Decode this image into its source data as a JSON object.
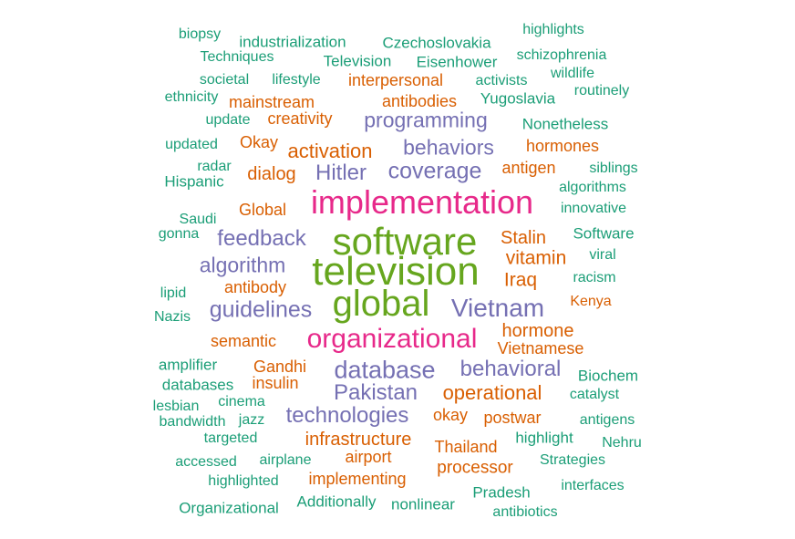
{
  "colors": {
    "teal": "#1b9e77",
    "orange": "#d95f02",
    "purple": "#7570b3",
    "pink": "#e7298a",
    "green": "#66a61e"
  },
  "words": [
    {
      "text": "software",
      "color": "green"
    },
    {
      "text": "television",
      "color": "green"
    },
    {
      "text": "global",
      "color": "green"
    },
    {
      "text": "implementation",
      "color": "pink"
    },
    {
      "text": "organizational",
      "color": "pink"
    },
    {
      "text": "Vietnam",
      "color": "purple"
    },
    {
      "text": "database",
      "color": "purple"
    },
    {
      "text": "Pakistan",
      "color": "purple"
    },
    {
      "text": "technologies",
      "color": "purple"
    },
    {
      "text": "guidelines",
      "color": "purple"
    },
    {
      "text": "Hitler",
      "color": "purple"
    },
    {
      "text": "coverage",
      "color": "purple"
    },
    {
      "text": "behavioral",
      "color": "purple"
    },
    {
      "text": "feedback",
      "color": "purple"
    },
    {
      "text": "algorithm",
      "color": "purple"
    },
    {
      "text": "behaviors",
      "color": "purple"
    },
    {
      "text": "programming",
      "color": "purple"
    },
    {
      "text": "activation",
      "color": "orange"
    },
    {
      "text": "operational",
      "color": "orange"
    },
    {
      "text": "infrastructure",
      "color": "orange"
    },
    {
      "text": "vitamin",
      "color": "orange"
    },
    {
      "text": "hormone",
      "color": "orange"
    },
    {
      "text": "Stalin",
      "color": "orange"
    },
    {
      "text": "Iraq",
      "color": "orange"
    },
    {
      "text": "dialog",
      "color": "orange"
    },
    {
      "text": "antigen",
      "color": "orange"
    },
    {
      "text": "Global",
      "color": "orange"
    },
    {
      "text": "antibody",
      "color": "orange"
    },
    {
      "text": "semantic",
      "color": "orange"
    },
    {
      "text": "Gandhi",
      "color": "orange"
    },
    {
      "text": "insulin",
      "color": "orange"
    },
    {
      "text": "okay",
      "color": "orange"
    },
    {
      "text": "postwar",
      "color": "orange"
    },
    {
      "text": "Thailand",
      "color": "orange"
    },
    {
      "text": "processor",
      "color": "orange"
    },
    {
      "text": "airport",
      "color": "orange"
    },
    {
      "text": "implementing",
      "color": "orange"
    },
    {
      "text": "Okay",
      "color": "orange"
    },
    {
      "text": "hormones",
      "color": "orange"
    },
    {
      "text": "mainstream",
      "color": "orange"
    },
    {
      "text": "antibodies",
      "color": "orange"
    },
    {
      "text": "creativity",
      "color": "orange"
    },
    {
      "text": "interpersonal",
      "color": "orange"
    },
    {
      "text": "Vietnamese",
      "color": "orange"
    },
    {
      "text": "Kenya",
      "color": "orange"
    },
    {
      "text": "biopsy",
      "color": "teal"
    },
    {
      "text": "industrialization",
      "color": "teal"
    },
    {
      "text": "Czechoslovakia",
      "color": "teal"
    },
    {
      "text": "highlights",
      "color": "teal"
    },
    {
      "text": "Techniques",
      "color": "teal"
    },
    {
      "text": "Television",
      "color": "teal"
    },
    {
      "text": "Eisenhower",
      "color": "teal"
    },
    {
      "text": "schizophrenia",
      "color": "teal"
    },
    {
      "text": "wildlife",
      "color": "teal"
    },
    {
      "text": "societal",
      "color": "teal"
    },
    {
      "text": "lifestyle",
      "color": "teal"
    },
    {
      "text": "activists",
      "color": "teal"
    },
    {
      "text": "routinely",
      "color": "teal"
    },
    {
      "text": "ethnicity",
      "color": "teal"
    },
    {
      "text": "Yugoslavia",
      "color": "teal"
    },
    {
      "text": "update",
      "color": "teal"
    },
    {
      "text": "Nonetheless",
      "color": "teal"
    },
    {
      "text": "updated",
      "color": "teal"
    },
    {
      "text": "radar",
      "color": "teal"
    },
    {
      "text": "siblings",
      "color": "teal"
    },
    {
      "text": "Hispanic",
      "color": "teal"
    },
    {
      "text": "algorithms",
      "color": "teal"
    },
    {
      "text": "innovative",
      "color": "teal"
    },
    {
      "text": "Saudi",
      "color": "teal"
    },
    {
      "text": "gonna",
      "color": "teal"
    },
    {
      "text": "Software",
      "color": "teal"
    },
    {
      "text": "viral",
      "color": "teal"
    },
    {
      "text": "racism",
      "color": "teal"
    },
    {
      "text": "lipid",
      "color": "teal"
    },
    {
      "text": "Nazis",
      "color": "teal"
    },
    {
      "text": "amplifier",
      "color": "teal"
    },
    {
      "text": "databases",
      "color": "teal"
    },
    {
      "text": "Biochem",
      "color": "teal"
    },
    {
      "text": "catalyst",
      "color": "teal"
    },
    {
      "text": "lesbian",
      "color": "teal"
    },
    {
      "text": "cinema",
      "color": "teal"
    },
    {
      "text": "bandwidth",
      "color": "teal"
    },
    {
      "text": "jazz",
      "color": "teal"
    },
    {
      "text": "antigens",
      "color": "teal"
    },
    {
      "text": "targeted",
      "color": "teal"
    },
    {
      "text": "highlight",
      "color": "teal"
    },
    {
      "text": "Nehru",
      "color": "teal"
    },
    {
      "text": "accessed",
      "color": "teal"
    },
    {
      "text": "airplane",
      "color": "teal"
    },
    {
      "text": "Strategies",
      "color": "teal"
    },
    {
      "text": "highlighted",
      "color": "teal"
    },
    {
      "text": "Pradesh",
      "color": "teal"
    },
    {
      "text": "interfaces",
      "color": "teal"
    },
    {
      "text": "Organizational",
      "color": "teal"
    },
    {
      "text": "Additionally",
      "color": "teal"
    },
    {
      "text": "nonlinear",
      "color": "teal"
    },
    {
      "text": "antibiotics",
      "color": "teal"
    }
  ]
}
